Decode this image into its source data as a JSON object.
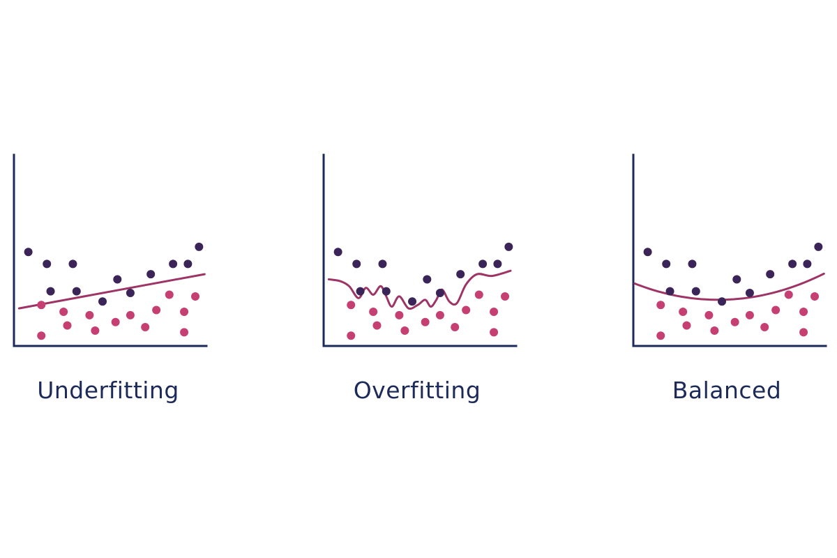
{
  "colors": {
    "axis": "#1b2a59",
    "dark_point": "#3a2458",
    "pink_point": "#c53f73",
    "fit_curve": "#9e3466",
    "label_text": "#1b2a59"
  },
  "points": {
    "dark": [
      [
        0.7,
        5.5
      ],
      [
        1.7,
        4.8
      ],
      [
        1.9,
        3.2
      ],
      [
        3.1,
        4.8
      ],
      [
        3.3,
        3.2
      ],
      [
        4.7,
        2.6
      ],
      [
        5.5,
        3.9
      ],
      [
        6.2,
        3.1
      ],
      [
        7.3,
        4.2
      ],
      [
        8.5,
        4.8
      ],
      [
        9.3,
        4.8
      ],
      [
        9.9,
        5.8
      ]
    ],
    "pink": [
      [
        1.4,
        2.4
      ],
      [
        1.4,
        0.6
      ],
      [
        2.6,
        2.0
      ],
      [
        2.8,
        1.2
      ],
      [
        4.0,
        1.8
      ],
      [
        4.3,
        0.9
      ],
      [
        5.4,
        1.4
      ],
      [
        6.2,
        1.8
      ],
      [
        7.0,
        1.1
      ],
      [
        7.6,
        2.1
      ],
      [
        8.3,
        3.0
      ],
      [
        9.1,
        2.0
      ],
      [
        9.1,
        0.8
      ],
      [
        9.7,
        2.9
      ]
    ]
  },
  "panels": [
    {
      "id": "underfitting",
      "label": "Underfitting",
      "fit": [
        [
          0.2,
          2.2
        ],
        [
          10.2,
          4.2
        ]
      ]
    },
    {
      "id": "overfitting",
      "label": "Overfitting",
      "fit": [
        [
          0.2,
          3.9
        ],
        [
          0.8,
          3.8
        ],
        [
          1.3,
          3.5
        ],
        [
          1.8,
          2.8
        ],
        [
          2.2,
          3.4
        ],
        [
          2.6,
          3.0
        ],
        [
          3.0,
          3.5
        ],
        [
          3.3,
          2.9
        ],
        [
          3.6,
          2.3
        ],
        [
          4.0,
          2.9
        ],
        [
          4.5,
          2.2
        ],
        [
          5.0,
          2.4
        ],
        [
          5.4,
          2.7
        ],
        [
          5.7,
          2.3
        ],
        [
          6.0,
          2.7
        ],
        [
          6.3,
          3.3
        ],
        [
          6.7,
          2.6
        ],
        [
          7.1,
          2.5
        ],
        [
          7.6,
          3.6
        ],
        [
          8.2,
          4.2
        ],
        [
          9.0,
          4.1
        ],
        [
          10.0,
          4.4
        ]
      ]
    },
    {
      "id": "balanced",
      "label": "Balanced",
      "fit": "quadratic"
    }
  ]
}
